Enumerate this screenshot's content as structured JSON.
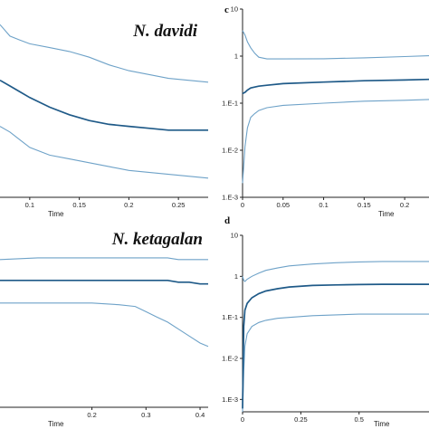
{
  "colors": {
    "median": "#1f5a88",
    "interval": "#6ea2c8",
    "axis": "#222222"
  },
  "chart_data": [
    {
      "panel": "top-left",
      "type": "line",
      "species_label": "N. davidi",
      "xlabel": "Time",
      "xlim": [
        0.07,
        0.28
      ],
      "x_ticks": [
        0.1,
        0.15,
        0.2,
        0.25
      ],
      "x_tick_labels": [
        "0.1",
        "0.15",
        "0.2",
        "0.25"
      ],
      "ylim": [
        0,
        1
      ],
      "x": [
        0.07,
        0.08,
        0.09,
        0.1,
        0.12,
        0.14,
        0.16,
        0.18,
        0.2,
        0.22,
        0.24,
        0.26,
        0.28
      ],
      "series": [
        {
          "role": "upper",
          "values": [
            0.9,
            0.84,
            0.82,
            0.8,
            0.78,
            0.76,
            0.73,
            0.69,
            0.66,
            0.64,
            0.62,
            0.61,
            0.6
          ]
        },
        {
          "role": "median",
          "values": [
            0.61,
            0.58,
            0.55,
            0.52,
            0.47,
            0.43,
            0.4,
            0.38,
            0.37,
            0.36,
            0.35,
            0.35,
            0.35
          ]
        },
        {
          "role": "lower",
          "values": [
            0.37,
            0.34,
            0.3,
            0.26,
            0.22,
            0.2,
            0.18,
            0.16,
            0.14,
            0.13,
            0.12,
            0.11,
            0.1
          ]
        }
      ]
    },
    {
      "panel": "c",
      "type": "line",
      "panel_letter": "c",
      "xlabel": "Time",
      "xlim": [
        0,
        0.23
      ],
      "x_ticks": [
        0,
        0.05,
        0.1,
        0.15,
        0.2
      ],
      "x_tick_labels": [
        "0",
        "0.05",
        "0.1",
        "0.15",
        "0.2"
      ],
      "y_scale": "log",
      "ylim": [
        0.001,
        10
      ],
      "y_ticks": [
        10,
        1,
        0.1,
        0.01,
        0.001
      ],
      "y_tick_labels": [
        "10",
        "1",
        "1.E-1",
        "1.E-2",
        "1.E-3"
      ],
      "x": [
        0,
        0.003,
        0.006,
        0.01,
        0.015,
        0.02,
        0.03,
        0.05,
        0.1,
        0.15,
        0.2,
        0.23
      ],
      "series": [
        {
          "role": "upper",
          "values": [
            3.5,
            2.8,
            2.0,
            1.5,
            1.15,
            0.95,
            0.87,
            0.87,
            0.88,
            0.92,
            0.98,
            1.02
          ]
        },
        {
          "role": "median",
          "values": [
            0.16,
            0.17,
            0.19,
            0.21,
            0.22,
            0.23,
            0.24,
            0.26,
            0.28,
            0.3,
            0.31,
            0.32
          ]
        },
        {
          "role": "lower",
          "values": [
            0.002,
            0.012,
            0.03,
            0.05,
            0.06,
            0.07,
            0.08,
            0.09,
            0.1,
            0.11,
            0.115,
            0.12
          ]
        }
      ]
    },
    {
      "panel": "bottom-left",
      "type": "line",
      "species_label": "N. ketagalan",
      "xlabel": "Time",
      "xlim": [
        0.03,
        0.415
      ],
      "x_ticks": [
        0.2,
        0.3,
        0.4
      ],
      "x_tick_labels": [
        "0.2",
        "0.3",
        "0.4"
      ],
      "ylim": [
        0,
        1
      ],
      "x": [
        0.03,
        0.1,
        0.15,
        0.2,
        0.25,
        0.28,
        0.3,
        0.32,
        0.34,
        0.36,
        0.38,
        0.4,
        0.415
      ],
      "series": [
        {
          "role": "upper",
          "values": [
            0.85,
            0.86,
            0.86,
            0.86,
            0.86,
            0.86,
            0.86,
            0.86,
            0.86,
            0.85,
            0.85,
            0.85,
            0.85
          ]
        },
        {
          "role": "median",
          "values": [
            0.73,
            0.73,
            0.73,
            0.73,
            0.73,
            0.73,
            0.73,
            0.73,
            0.73,
            0.72,
            0.72,
            0.71,
            0.71
          ]
        },
        {
          "role": "lower",
          "values": [
            0.6,
            0.6,
            0.6,
            0.6,
            0.59,
            0.58,
            0.55,
            0.52,
            0.49,
            0.45,
            0.41,
            0.37,
            0.35
          ]
        }
      ]
    },
    {
      "panel": "d",
      "type": "line",
      "panel_letter": "d",
      "xlabel": "Time",
      "xlim": [
        0,
        0.8
      ],
      "x_ticks": [
        0,
        0.25,
        0.5
      ],
      "x_tick_labels": [
        "0",
        "0.25",
        "0.5"
      ],
      "y_scale": "log",
      "ylim": [
        0.0005,
        10
      ],
      "y_ticks": [
        10,
        1,
        0.1,
        0.01,
        0.001
      ],
      "y_tick_labels": [
        "10",
        "1",
        "1.E-1",
        "1.E-2",
        "1.E-3"
      ],
      "x": [
        0,
        0.005,
        0.01,
        0.02,
        0.04,
        0.07,
        0.1,
        0.15,
        0.2,
        0.3,
        0.4,
        0.5,
        0.6,
        0.7,
        0.8
      ],
      "series": [
        {
          "role": "upper",
          "values": [
            1.0,
            0.8,
            0.75,
            0.85,
            1.0,
            1.2,
            1.4,
            1.6,
            1.8,
            2.0,
            2.15,
            2.25,
            2.3,
            2.3,
            2.3
          ]
        },
        {
          "role": "median",
          "values": [
            0.0006,
            0.06,
            0.15,
            0.22,
            0.3,
            0.38,
            0.44,
            0.5,
            0.55,
            0.6,
            0.62,
            0.63,
            0.64,
            0.64,
            0.64
          ]
        },
        {
          "role": "lower",
          "values": [
            0.0005,
            0.005,
            0.02,
            0.04,
            0.06,
            0.075,
            0.085,
            0.095,
            0.1,
            0.11,
            0.115,
            0.12,
            0.12,
            0.12,
            0.12
          ]
        }
      ]
    }
  ]
}
